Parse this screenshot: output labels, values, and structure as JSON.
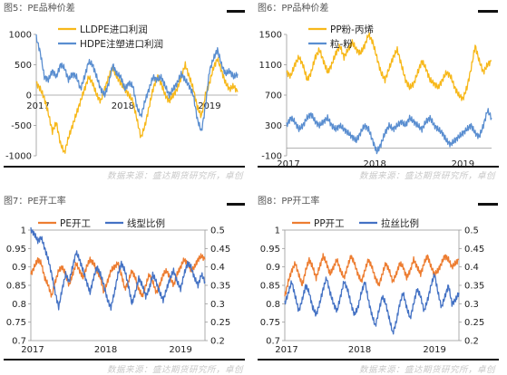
{
  "panels": [
    {
      "title": "图5：PE品种价差",
      "source": "数据来源：盛达期货研究所，卓创"
    },
    {
      "title": "图6：PP品种价差",
      "source": "数据来源：盛达期货研究所，卓创"
    },
    {
      "title": "图7：PE开工率",
      "source": "数据来源：盛达期货研究所，卓创"
    },
    {
      "title": "图8：PP开工率",
      "source": "数据来源：盛达期货研究所，卓创"
    }
  ],
  "colors": {
    "orange": "#F7B81A",
    "blue": "#5A8ED0",
    "orange2": "#ED7D31",
    "blue2": "#4472C4"
  },
  "chart_data": [
    {
      "type": "line",
      "title": "图5：PE品种价差",
      "x_ticks": [
        "2017",
        "2018",
        "2019"
      ],
      "ylim": [
        -1000,
        1000
      ],
      "y_ticks": [
        -1000,
        -500,
        0,
        500,
        1000
      ],
      "legend_position": "top",
      "series": [
        {
          "name": "LLDPE进口利润",
          "color": "#F7B81A",
          "values": [
            200,
            100,
            -50,
            -300,
            -600,
            -450,
            -800,
            -950,
            -700,
            -500,
            -300,
            -100,
            100,
            300,
            200,
            0,
            -100,
            100,
            300,
            450,
            300,
            200,
            100,
            0,
            -100,
            -400,
            -700,
            -500,
            -200,
            100,
            300,
            200,
            0,
            -100,
            0,
            100,
            300,
            500,
            300,
            100,
            -200,
            -350,
            0,
            200,
            450,
            600,
            400,
            200,
            100,
            150,
            50
          ]
        },
        {
          "name": "HDPE注塑进口利润",
          "color": "#5A8ED0",
          "values": [
            950,
            700,
            300,
            250,
            400,
            300,
            500,
            450,
            250,
            350,
            300,
            100,
            300,
            550,
            500,
            300,
            100,
            0,
            200,
            500,
            350,
            300,
            100,
            200,
            150,
            -200,
            -350,
            -100,
            100,
            300,
            250,
            300,
            150,
            0,
            100,
            200,
            350,
            250,
            150,
            0,
            -400,
            -600,
            -200,
            400,
            600,
            750,
            500,
            350,
            400,
            300,
            350
          ]
        }
      ]
    },
    {
      "type": "line",
      "title": "图6：PP品种价差",
      "x_ticks": [
        "2017",
        "2018",
        "2019"
      ],
      "ylim": [
        -100,
        1500
      ],
      "y_ticks": [
        -100,
        300,
        700,
        1100,
        1500
      ],
      "legend_position": "top",
      "series": [
        {
          "name": "PP粉-丙烯",
          "color": "#F7B81A",
          "values": [
            1000,
            950,
            1100,
            1200,
            1100,
            900,
            1000,
            1200,
            1300,
            1150,
            1000,
            1100,
            1250,
            1350,
            1200,
            1300,
            1400,
            1300,
            1250,
            1350,
            1500,
            1400,
            1200,
            1000,
            900,
            1050,
            1200,
            1300,
            1100,
            900,
            800,
            850,
            1000,
            1150,
            1050,
            900,
            850,
            800,
            900,
            1000,
            950,
            800,
            700,
            650,
            800,
            1050,
            1350,
            1150,
            1000,
            1100,
            1150
          ]
        },
        {
          "name": "粒-粉",
          "color": "#5A8ED0",
          "values": [
            300,
            400,
            350,
            250,
            300,
            400,
            450,
            350,
            300,
            350,
            400,
            300,
            250,
            300,
            250,
            200,
            150,
            100,
            200,
            300,
            250,
            100,
            -50,
            50,
            200,
            300,
            250,
            300,
            350,
            300,
            400,
            350,
            300,
            250,
            350,
            400,
            300,
            250,
            200,
            100,
            50,
            100,
            150,
            200,
            250,
            300,
            200,
            150,
            300,
            500,
            400
          ]
        }
      ]
    },
    {
      "type": "line",
      "title": "图7：PE开工率",
      "x_ticks": [
        "2017",
        "2018",
        "2019"
      ],
      "ylim": [
        0.7,
        1.0
      ],
      "y_ticks": [
        0.7,
        0.75,
        0.8,
        0.85,
        0.9,
        0.95,
        1.0
      ],
      "y2lim": [
        0.2,
        0.5
      ],
      "y2_ticks": [
        0.2,
        0.25,
        0.3,
        0.35,
        0.4,
        0.45,
        0.5
      ],
      "legend_position": "top",
      "series": [
        {
          "name": "PE开工",
          "color": "#ED7D31",
          "axis": "left",
          "values": [
            0.88,
            0.9,
            0.92,
            0.91,
            0.87,
            0.85,
            0.82,
            0.86,
            0.89,
            0.9,
            0.88,
            0.85,
            0.88,
            0.91,
            0.89,
            0.87,
            0.9,
            0.92,
            0.91,
            0.89,
            0.87,
            0.83,
            0.86,
            0.89,
            0.9,
            0.91,
            0.88,
            0.84,
            0.86,
            0.89,
            0.87,
            0.84,
            0.82,
            0.85,
            0.88,
            0.86,
            0.83,
            0.85,
            0.88,
            0.89,
            0.87,
            0.85,
            0.88,
            0.9,
            0.92,
            0.91,
            0.89,
            0.9,
            0.92,
            0.93,
            0.92
          ]
        },
        {
          "name": "线型比例",
          "color": "#4472C4",
          "axis": "right",
          "values": [
            0.5,
            0.49,
            0.47,
            0.48,
            0.45,
            0.42,
            0.38,
            0.33,
            0.29,
            0.34,
            0.38,
            0.36,
            0.4,
            0.44,
            0.42,
            0.39,
            0.36,
            0.33,
            0.37,
            0.4,
            0.38,
            0.35,
            0.31,
            0.29,
            0.33,
            0.38,
            0.41,
            0.39,
            0.35,
            0.3,
            0.33,
            0.37,
            0.35,
            0.32,
            0.34,
            0.38,
            0.36,
            0.33,
            0.31,
            0.34,
            0.37,
            0.39,
            0.36,
            0.34,
            0.38,
            0.41,
            0.4,
            0.37,
            0.35,
            0.38,
            0.36
          ]
        }
      ]
    },
    {
      "type": "line",
      "title": "图8：PP开工率",
      "x_ticks": [
        "2017",
        "2018",
        "2019"
      ],
      "ylim": [
        0.7,
        1.0
      ],
      "y_ticks": [
        0.7,
        0.75,
        0.8,
        0.85,
        0.9,
        0.95,
        1.0
      ],
      "y2lim": [
        0.2,
        0.5
      ],
      "y2_ticks": [
        0.2,
        0.25,
        0.3,
        0.35,
        0.4,
        0.45,
        0.5
      ],
      "legend_position": "top",
      "series": [
        {
          "name": "PP开工",
          "color": "#ED7D31",
          "axis": "left",
          "values": [
            0.82,
            0.86,
            0.89,
            0.91,
            0.88,
            0.85,
            0.89,
            0.92,
            0.9,
            0.87,
            0.9,
            0.93,
            0.91,
            0.88,
            0.9,
            0.92,
            0.89,
            0.87,
            0.9,
            0.93,
            0.91,
            0.88,
            0.86,
            0.89,
            0.92,
            0.9,
            0.87,
            0.85,
            0.88,
            0.91,
            0.89,
            0.86,
            0.88,
            0.91,
            0.9,
            0.87,
            0.89,
            0.92,
            0.9,
            0.88,
            0.91,
            0.93,
            0.9,
            0.88,
            0.89,
            0.91,
            0.93,
            0.92,
            0.9,
            0.91,
            0.92
          ]
        },
        {
          "name": "拉丝比例",
          "color": "#4472C4",
          "axis": "right",
          "values": [
            0.3,
            0.33,
            0.36,
            0.32,
            0.28,
            0.31,
            0.35,
            0.33,
            0.29,
            0.27,
            0.3,
            0.34,
            0.37,
            0.33,
            0.3,
            0.28,
            0.32,
            0.36,
            0.34,
            0.3,
            0.27,
            0.29,
            0.33,
            0.36,
            0.31,
            0.27,
            0.24,
            0.28,
            0.32,
            0.3,
            0.26,
            0.22,
            0.25,
            0.3,
            0.33,
            0.29,
            0.26,
            0.3,
            0.34,
            0.32,
            0.28,
            0.31,
            0.35,
            0.38,
            0.33,
            0.29,
            0.32,
            0.35,
            0.3,
            0.31,
            0.33
          ]
        }
      ]
    }
  ]
}
